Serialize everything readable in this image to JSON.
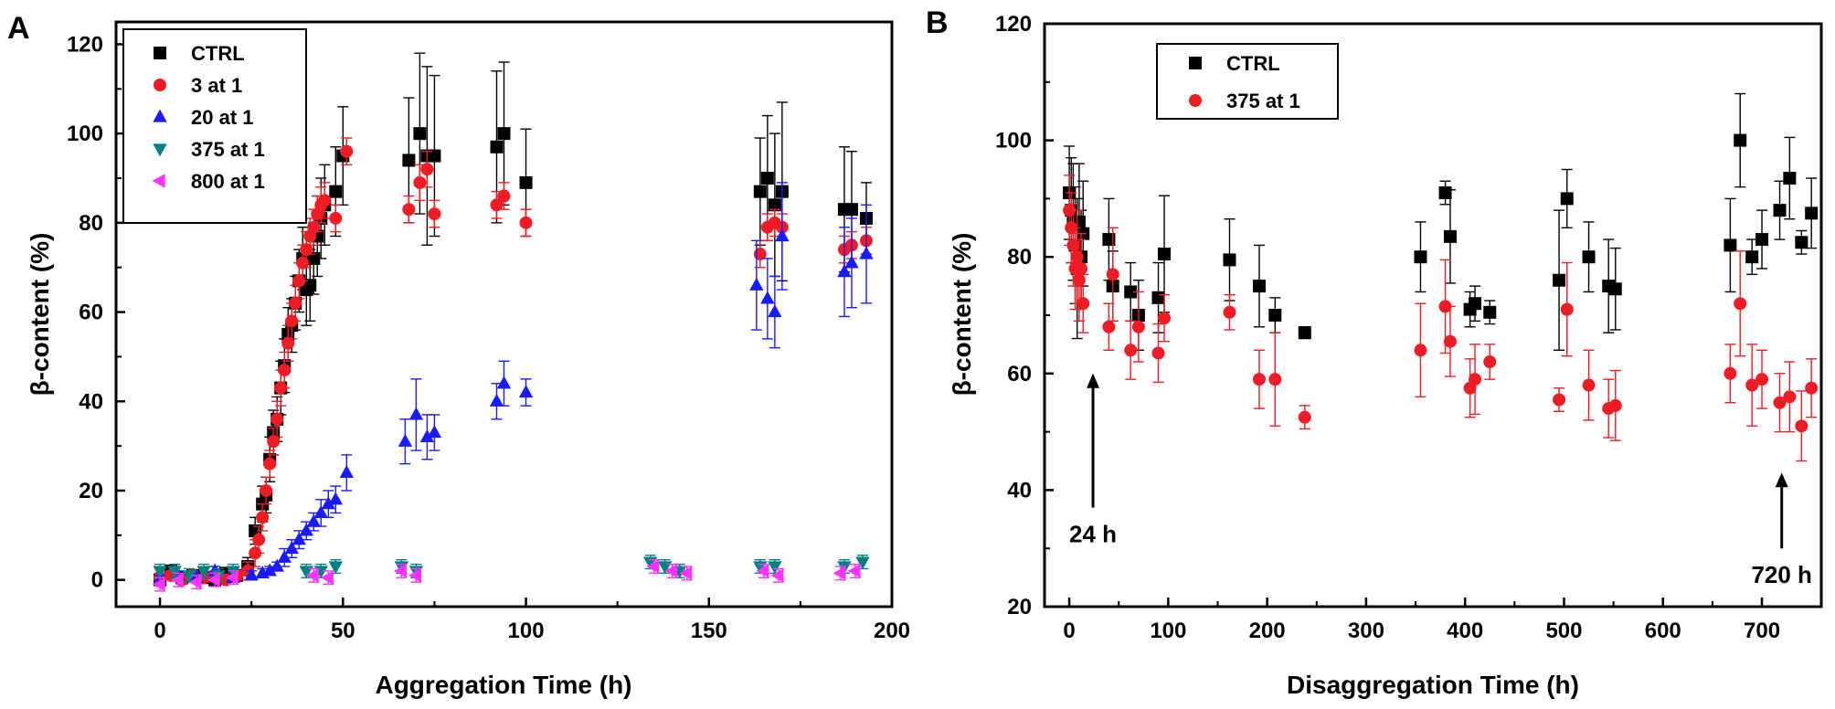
{
  "figure": {
    "panels": [
      "A",
      "B"
    ]
  },
  "colors": {
    "CTRL": "#000000",
    "3 at 1": "#ee1c25",
    "20 at 1": "#1a1aff",
    "375 at 1": "#008080",
    "800 at 1": "#ff33ff",
    "375 at 1 (B)": "#ee1c25"
  },
  "chart_data": [
    {
      "panel": "A",
      "type": "scatter",
      "title": "",
      "xlabel": "Aggregation Time (h)",
      "ylabel": "β-content (%)",
      "xlim": [
        -12,
        200
      ],
      "ylim": [
        -6,
        125
      ],
      "xticks": [
        0,
        50,
        100,
        150,
        200
      ],
      "yticks": [
        0,
        20,
        40,
        60,
        80,
        100,
        120
      ],
      "grid": false,
      "legend": "top-left",
      "series": [
        {
          "name": "CTRL",
          "marker": "square",
          "x": [
            0,
            3,
            6,
            9,
            12,
            15,
            18,
            21,
            24,
            26,
            28,
            29,
            30,
            31,
            32,
            33,
            34,
            35,
            36,
            37,
            38,
            39,
            40,
            41,
            42,
            43,
            44,
            45,
            48,
            50,
            68,
            71,
            73,
            75,
            92,
            94,
            100,
            164,
            166,
            168,
            170,
            187,
            189,
            193
          ],
          "y": [
            0,
            2,
            0.5,
            1,
            0.5,
            0,
            1.5,
            1,
            3,
            11,
            17,
            19,
            27,
            33,
            36,
            43,
            48,
            55,
            57,
            62,
            67,
            72,
            65,
            66,
            72,
            77,
            81,
            84,
            87,
            95,
            94,
            100,
            95,
            95,
            97,
            100,
            89,
            87,
            90,
            84,
            87,
            83,
            83,
            81
          ],
          "err": [
            1,
            1,
            1,
            1,
            1,
            1,
            1,
            1,
            2,
            3,
            4,
            4,
            5,
            5,
            5,
            6,
            6,
            6,
            6,
            6,
            7,
            7,
            8,
            8,
            8,
            9,
            9,
            9,
            10,
            11,
            14,
            18,
            20,
            18,
            17,
            16,
            12,
            12,
            14,
            16,
            20,
            14,
            13,
            8
          ]
        },
        {
          "name": "3 at 1",
          "marker": "circle",
          "x": [
            0,
            3,
            6,
            9,
            12,
            15,
            18,
            21,
            24,
            26,
            27,
            28,
            29,
            30,
            31,
            32,
            33,
            34,
            35,
            36,
            37,
            38,
            39,
            40,
            41,
            42,
            43,
            44,
            45,
            48,
            51,
            68,
            71,
            73,
            75,
            92,
            94,
            100,
            164,
            166,
            168,
            170,
            187,
            189,
            193
          ],
          "y": [
            0.5,
            1,
            0,
            1,
            0.5,
            1,
            0,
            1,
            2,
            6,
            9,
            14,
            20,
            26,
            31,
            36,
            43,
            47,
            53,
            58,
            62,
            67,
            71,
            74,
            77,
            79,
            82,
            84,
            85,
            81,
            96,
            83,
            89,
            92,
            82,
            84,
            86,
            80,
            73,
            79,
            80,
            79,
            74,
            75,
            76
          ],
          "err": [
            1,
            1,
            1,
            1,
            1,
            1,
            1,
            1,
            2,
            3,
            3,
            3,
            3,
            3,
            3,
            4,
            4,
            4,
            4,
            4,
            4,
            4,
            4,
            4,
            4,
            4,
            4,
            4,
            4,
            3,
            3,
            3,
            4,
            4,
            3,
            3,
            3,
            3,
            3,
            3,
            3,
            3,
            3,
            3,
            3
          ]
        },
        {
          "name": "20 at 1",
          "marker": "triangle-up",
          "x": [
            0,
            5,
            10,
            15,
            20,
            25,
            28,
            30,
            32,
            34,
            36,
            38,
            40,
            42,
            44,
            46,
            48,
            51,
            67,
            70,
            73,
            75,
            92,
            94,
            100,
            163,
            166,
            168,
            170,
            187,
            189,
            193
          ],
          "y": [
            0,
            1,
            0.5,
            2,
            0.5,
            1,
            1.5,
            2,
            3,
            5,
            7,
            9,
            11,
            13,
            15,
            17,
            18,
            24,
            31,
            37,
            32,
            33,
            40,
            44,
            42,
            66,
            63,
            60,
            77,
            69,
            71,
            73
          ],
          "err": [
            1,
            1,
            1,
            1,
            1,
            1,
            1,
            1,
            1,
            2,
            2,
            2,
            2,
            2,
            3,
            3,
            3,
            4,
            5,
            8,
            5,
            4,
            4,
            5,
            3,
            10,
            9,
            8,
            12,
            10,
            10,
            11
          ]
        },
        {
          "name": "375 at 1",
          "marker": "triangle-down",
          "x": [
            0,
            4,
            8,
            12,
            16,
            20,
            40,
            44,
            48,
            66,
            70,
            134,
            138,
            142,
            164,
            168,
            187,
            192
          ],
          "y": [
            2,
            2,
            1,
            2,
            1,
            2,
            2,
            2,
            3,
            3,
            2,
            4,
            3,
            2,
            3,
            3,
            3,
            4
          ],
          "err": [
            1.5,
            1.5,
            1.5,
            1.5,
            1.5,
            1.5,
            1.5,
            1.5,
            1.5,
            1.5,
            1.5,
            1.5,
            1.5,
            1.5,
            1.5,
            1.5,
            1.5,
            1.5
          ]
        },
        {
          "name": "800 at 1",
          "marker": "triangle-left",
          "x": [
            0,
            5,
            10,
            15,
            20,
            42,
            46,
            66,
            70,
            135,
            140,
            144,
            165,
            169,
            186,
            190
          ],
          "y": [
            -1,
            0,
            -0.5,
            0,
            0.5,
            1,
            0.5,
            2,
            1,
            3,
            2,
            1.5,
            2,
            1,
            1.5,
            2
          ],
          "err": [
            1.5,
            1.5,
            1.5,
            1.5,
            1.5,
            1.5,
            1.5,
            1.5,
            1.5,
            1.5,
            1.5,
            1.5,
            1.5,
            1.5,
            1.5,
            1.5
          ]
        }
      ]
    },
    {
      "panel": "B",
      "type": "scatter",
      "title": "",
      "xlabel": "Disaggregation Time (h)",
      "ylabel": "β-content (%)",
      "xlim": [
        -25,
        760
      ],
      "ylim": [
        20,
        120
      ],
      "xticks": [
        0,
        100,
        200,
        300,
        400,
        500,
        600,
        700
      ],
      "yticks": [
        20,
        40,
        60,
        80,
        100,
        120
      ],
      "grid": false,
      "legend": "top-left",
      "annotations": [
        {
          "text": "24 h",
          "x": 24,
          "y_from": 37,
          "y_to": 60
        },
        {
          "text": "720 h",
          "x": 720,
          "y_from": 30,
          "y_to": 43
        }
      ],
      "series": [
        {
          "name": "CTRL",
          "marker": "square",
          "x": [
            0,
            2,
            4,
            6,
            8,
            10,
            12,
            14,
            40,
            44,
            62,
            70,
            90,
            96,
            162,
            192,
            208,
            238,
            355,
            380,
            385,
            405,
            410,
            425,
            495,
            503,
            525,
            545,
            552,
            668,
            678,
            690,
            700,
            718,
            728,
            740,
            750
          ],
          "y": [
            91,
            88,
            86,
            82,
            78,
            86,
            80,
            84,
            83,
            75,
            74,
            70,
            73,
            80.5,
            79.5,
            75,
            70,
            67,
            80,
            91,
            83.5,
            71,
            72,
            70.5,
            76,
            90,
            80,
            75,
            74.5,
            82,
            100,
            80,
            83,
            88,
            93.5,
            82.5,
            87.5
          ],
          "err": [
            8,
            9,
            10,
            10,
            12,
            10,
            8,
            9,
            7,
            6,
            5,
            6,
            6,
            10,
            7,
            7,
            3,
            1,
            6,
            2,
            8,
            3,
            3,
            2,
            12,
            5,
            6,
            8,
            7,
            8,
            8,
            3,
            5,
            5,
            7,
            2,
            6
          ]
        },
        {
          "name": "375 at 1",
          "marker": "circle",
          "x": [
            0,
            2,
            4,
            6,
            8,
            10,
            12,
            14,
            40,
            44,
            62,
            70,
            90,
            96,
            162,
            192,
            208,
            238,
            355,
            380,
            385,
            405,
            410,
            425,
            495,
            503,
            525,
            545,
            552,
            668,
            678,
            690,
            700,
            718,
            728,
            740,
            750
          ],
          "y": [
            88,
            85,
            82,
            78,
            80,
            76,
            78,
            72,
            68,
            77,
            64,
            68,
            63.5,
            69.5,
            70.5,
            59,
            59,
            52.5,
            64,
            71.5,
            65.5,
            57.5,
            59,
            62,
            55.5,
            71,
            58,
            54,
            54.5,
            60,
            72,
            58,
            59,
            55,
            56,
            51,
            57.5
          ],
          "err": [
            6,
            6,
            7,
            7,
            8,
            7,
            6,
            5,
            4,
            8,
            5,
            6,
            5,
            4,
            3,
            5,
            8,
            2,
            8,
            8,
            6,
            5,
            6,
            3,
            2,
            8,
            6,
            5,
            6,
            5,
            9,
            7,
            5,
            5,
            6,
            6,
            5
          ]
        }
      ]
    }
  ]
}
